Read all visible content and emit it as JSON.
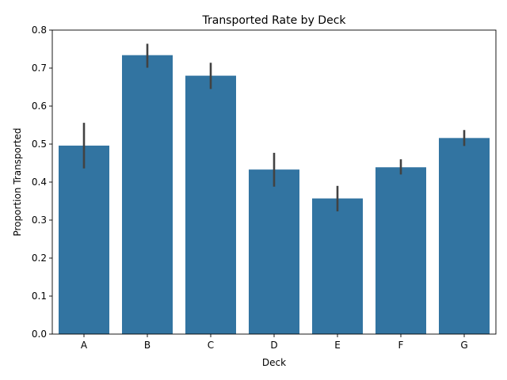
{
  "chart_data": {
    "type": "bar",
    "title": "Transported Rate by Deck",
    "xlabel": "Deck",
    "ylabel": "Proportion Transported",
    "categories": [
      "A",
      "B",
      "C",
      "D",
      "E",
      "F",
      "G"
    ],
    "values": [
      0.496,
      0.734,
      0.68,
      0.433,
      0.357,
      0.439,
      0.516
    ],
    "error_bars": [
      [
        0.436,
        0.556
      ],
      [
        0.701,
        0.764
      ],
      [
        0.645,
        0.714
      ],
      [
        0.388,
        0.477
      ],
      [
        0.323,
        0.39
      ],
      [
        0.42,
        0.46
      ],
      [
        0.495,
        0.537
      ]
    ],
    "ylim": [
      0,
      0.8
    ],
    "yticks": [
      0.0,
      0.1,
      0.2,
      0.3,
      0.4,
      0.5,
      0.6,
      0.7,
      0.8
    ],
    "grid": false,
    "bar_color": "#3274a1",
    "errorbar_color": "#424242"
  }
}
